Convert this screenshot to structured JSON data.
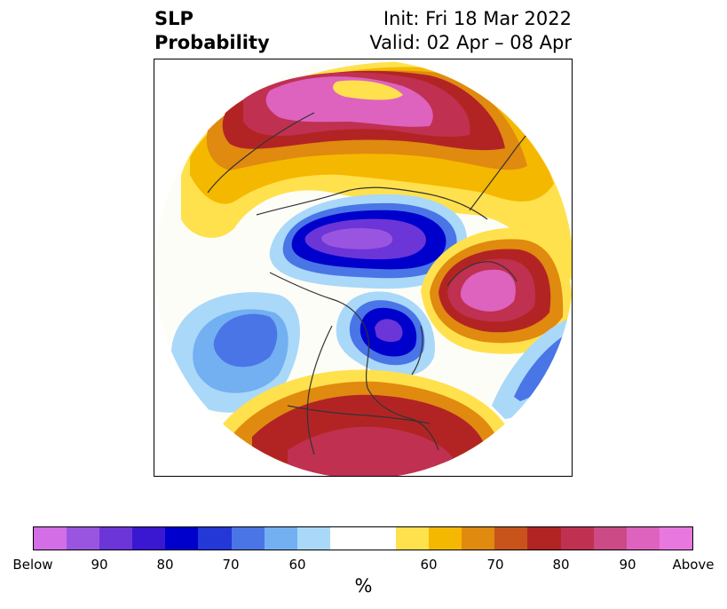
{
  "header": {
    "title_line1": "SLP",
    "title_line2": "Probability",
    "init": "Init: Fri 18 Mar 2022",
    "valid": "Valid: 02 Apr – 08 Apr"
  },
  "colorbar": {
    "colors": [
      "#d36ee6",
      "#9a55e0",
      "#6b35d8",
      "#3a18d2",
      "#0000cc",
      "#2338d6",
      "#4a75e6",
      "#73b0f2",
      "#aad8f8",
      "#ffffff",
      "#ffffff",
      "#ffe14d",
      "#f5b800",
      "#e08a10",
      "#c8541c",
      "#b22424",
      "#c03050",
      "#cc4a85",
      "#de63bf",
      "#e878e0"
    ],
    "labels": [
      "Below",
      "90",
      "80",
      "70",
      "60",
      "60",
      "70",
      "80",
      "90",
      "Above"
    ],
    "unit": "%"
  },
  "map": {
    "region": "Northern Hemisphere polar stereographic",
    "palette": {
      "above_strong": "#de63bf",
      "above_high": "#c03050",
      "above_mid": "#b22424",
      "above_low": "#e08a10",
      "above_min": "#f5b800",
      "above_faint": "#ffe14d",
      "below_strong": "#9a55e0",
      "below_high": "#0000cc",
      "below_mid": "#4a75e6",
      "below_low": "#73b0f2",
      "below_faint": "#aad8f8"
    }
  }
}
